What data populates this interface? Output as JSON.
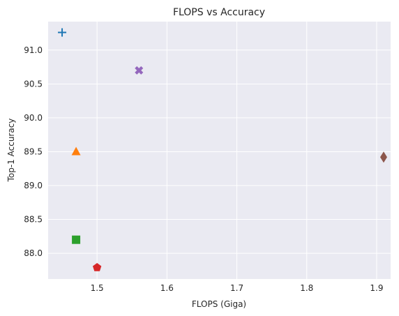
{
  "chart_data": {
    "type": "scatter",
    "title": "FLOPS vs Accuracy",
    "xlabel": "FLOPS (Giga)",
    "ylabel": "Top-1 Accuracy",
    "xlim": [
      1.43,
      1.92
    ],
    "ylim": [
      87.62,
      91.42
    ],
    "xticks": [
      1.5,
      1.6,
      1.7,
      1.8,
      1.9
    ],
    "xtick_labels": [
      "1.5",
      "1.6",
      "1.7",
      "1.8",
      "1.9"
    ],
    "yticks": [
      88.0,
      88.5,
      89.0,
      89.5,
      90.0,
      90.5,
      91.0
    ],
    "ytick_labels": [
      "88.0",
      "88.5",
      "89.0",
      "89.5",
      "90.0",
      "90.5",
      "91.0"
    ],
    "grid": true,
    "background": "#eaeaf2",
    "points": [
      {
        "x": 1.45,
        "y": 91.26,
        "marker": "plus",
        "color": "#1f77b4"
      },
      {
        "x": 1.47,
        "y": 89.5,
        "marker": "triangle",
        "color": "#ff7f0e"
      },
      {
        "x": 1.47,
        "y": 88.2,
        "marker": "square",
        "color": "#2ca02c"
      },
      {
        "x": 1.5,
        "y": 87.79,
        "marker": "pentagon",
        "color": "#d62728"
      },
      {
        "x": 1.56,
        "y": 90.7,
        "marker": "x-filled",
        "color": "#9467bd"
      },
      {
        "x": 1.91,
        "y": 89.42,
        "marker": "diamond",
        "color": "#8c564b"
      }
    ]
  }
}
